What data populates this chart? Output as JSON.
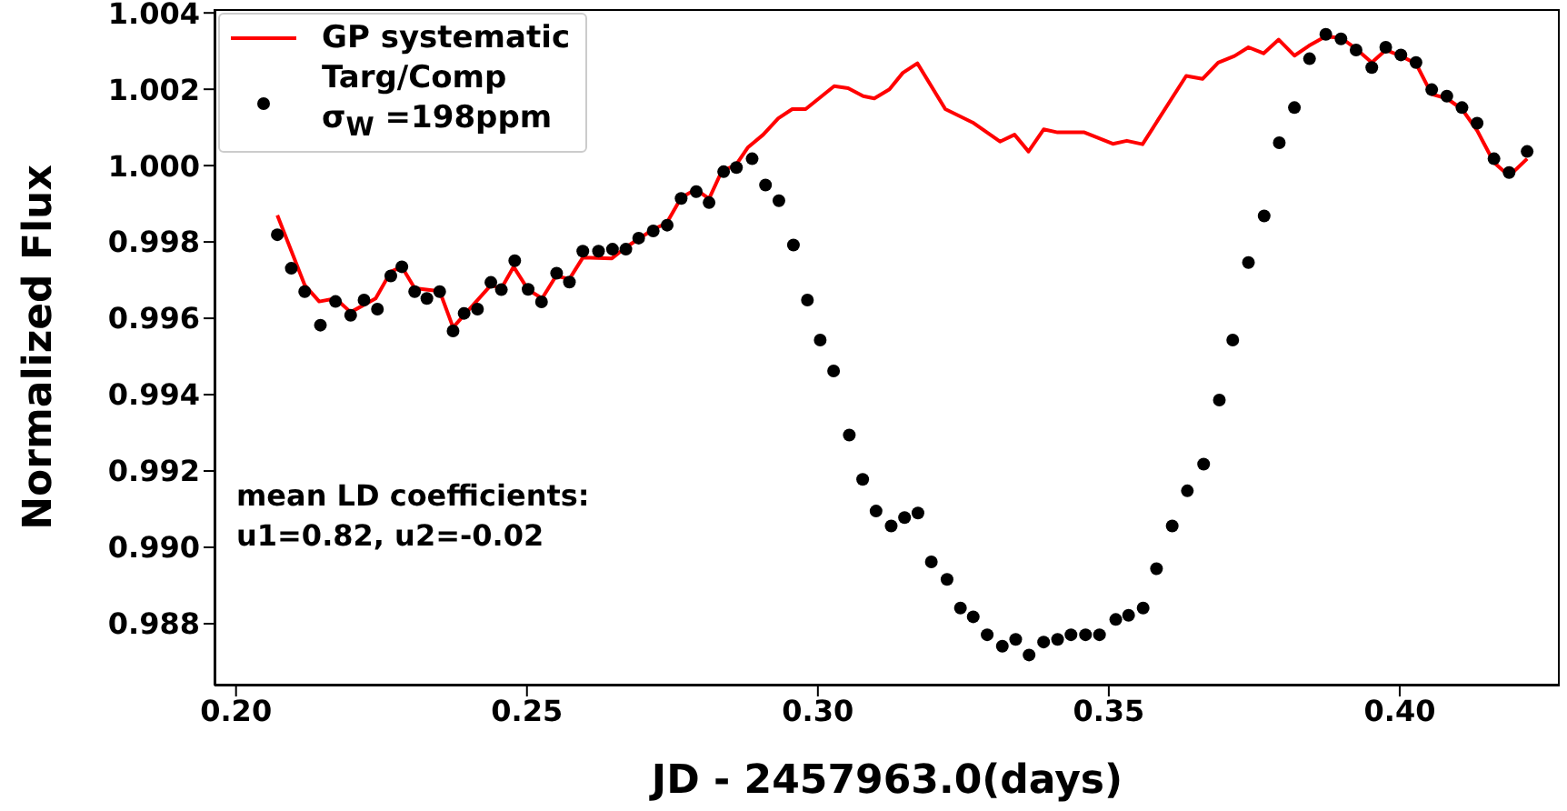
{
  "chart_data": {
    "type": "scatter",
    "xlabel": "JD - 2457963.0(days)",
    "ylabel": "Normalized Flux",
    "xlim": [
      0.1963,
      0.4275
    ],
    "ylim": [
      0.98638,
      1.0041
    ],
    "xticks": [
      {
        "value": 0.2,
        "label": "0.20"
      },
      {
        "value": 0.25,
        "label": "0.25"
      },
      {
        "value": 0.3,
        "label": "0.30"
      },
      {
        "value": 0.35,
        "label": "0.35"
      },
      {
        "value": 0.4,
        "label": "0.40"
      }
    ],
    "yticks": [
      {
        "value": 0.988,
        "label": "0.988"
      },
      {
        "value": 0.99,
        "label": "0.990"
      },
      {
        "value": 0.992,
        "label": "0.992"
      },
      {
        "value": 0.994,
        "label": "0.994"
      },
      {
        "value": 0.996,
        "label": "0.996"
      },
      {
        "value": 0.998,
        "label": "0.998"
      },
      {
        "value": 1.0,
        "label": "1.000"
      },
      {
        "value": 1.002,
        "label": "1.002"
      },
      {
        "value": 1.004,
        "label": "1.004"
      }
    ],
    "grid": false,
    "legend": "top left",
    "annotations": [
      "mean LD coefficients:\nu1=0.82, u2=-0.02"
    ],
    "series": [
      {
        "name": "GP systematic",
        "type": "line",
        "color": "#ff0000",
        "line_style": "solid",
        "marker": "none",
        "x": [
          0.2071,
          0.2118,
          0.2143,
          0.2171,
          0.2197,
          0.224,
          0.2266,
          0.2285,
          0.2307,
          0.235,
          0.2373,
          0.2438,
          0.2456,
          0.2477,
          0.2502,
          0.2526,
          0.255,
          0.2573,
          0.2596,
          0.2646,
          0.267,
          0.2717,
          0.274,
          0.2765,
          0.279,
          0.2813,
          0.2835,
          0.2859,
          0.288,
          0.2906,
          0.2932,
          0.2956,
          0.2979,
          0.3028,
          0.3052,
          0.3078,
          0.3097,
          0.3123,
          0.3146,
          0.3171,
          0.3219,
          0.3266,
          0.3313,
          0.3338,
          0.3362,
          0.3388,
          0.3412,
          0.3458,
          0.3507,
          0.3531,
          0.3558,
          0.3633,
          0.3661,
          0.3688,
          0.3716,
          0.374,
          0.3766,
          0.3792,
          0.3819,
          0.3844,
          0.3872,
          0.3899,
          0.3925,
          0.3952,
          0.3976,
          0.4002,
          0.4028,
          0.4055,
          0.4081,
          0.4107,
          0.4133,
          0.4162,
          0.4188,
          0.4219
        ],
        "values": [
          0.9987,
          0.99687,
          0.99644,
          0.99652,
          0.99616,
          0.99652,
          0.99722,
          0.99735,
          0.99679,
          0.99671,
          0.99576,
          0.99687,
          0.99678,
          0.99735,
          0.99675,
          0.99652,
          0.99711,
          0.99703,
          0.99759,
          0.99757,
          0.99786,
          0.99833,
          0.99849,
          0.99916,
          0.99938,
          0.99913,
          0.99986,
          1.00001,
          1.00048,
          1.00081,
          1.00124,
          1.00148,
          1.00148,
          1.00208,
          1.00203,
          1.00182,
          1.00176,
          1.002,
          1.00243,
          1.00268,
          1.00148,
          1.00113,
          1.00063,
          1.00081,
          1.00037,
          1.00095,
          1.00087,
          1.00087,
          1.00057,
          1.00065,
          1.00056,
          1.00235,
          1.00227,
          1.0027,
          1.00287,
          1.0031,
          1.00294,
          1.0033,
          1.00288,
          1.00314,
          1.00338,
          1.00335,
          1.00306,
          1.0027,
          1.00303,
          1.00287,
          1.00267,
          1.00187,
          1.00176,
          1.00148,
          1.00092,
          1.00008,
          0.99973,
          1.00018
        ]
      },
      {
        "name": "Targ/Comp\nσ$_{W}$ =198ppm",
        "type": "scatter",
        "color": "#000000",
        "marker": "circle",
        "x": [
          0.2071,
          0.2095,
          0.2118,
          0.2145,
          0.2171,
          0.2197,
          0.222,
          0.2243,
          0.2266,
          0.2285,
          0.2307,
          0.2328,
          0.235,
          0.2373,
          0.2392,
          0.2415,
          0.2438,
          0.2456,
          0.2479,
          0.2502,
          0.2525,
          0.2551,
          0.2573,
          0.2596,
          0.2623,
          0.2647,
          0.267,
          0.2692,
          0.2717,
          0.2741,
          0.2765,
          0.2791,
          0.2813,
          0.2838,
          0.286,
          0.2887,
          0.291,
          0.2933,
          0.2958,
          0.2982,
          0.3004,
          0.3027,
          0.3054,
          0.3077,
          0.31,
          0.3126,
          0.3149,
          0.3172,
          0.3195,
          0.3222,
          0.3245,
          0.3267,
          0.3291,
          0.3317,
          0.334,
          0.3363,
          0.3388,
          0.3412,
          0.3435,
          0.346,
          0.3484,
          0.3512,
          0.3534,
          0.3559,
          0.3582,
          0.3609,
          0.3635,
          0.3663,
          0.369,
          0.3713,
          0.374,
          0.3767,
          0.3793,
          0.3819,
          0.3845,
          0.3873,
          0.3899,
          0.3925,
          0.3952,
          0.3976,
          0.4002,
          0.4028,
          0.4055,
          0.4081,
          0.4107,
          0.4133,
          0.4162,
          0.4188,
          0.4219
        ],
        "values": [
          0.99819,
          0.99731,
          0.9967,
          0.99582,
          0.99644,
          0.99608,
          0.99648,
          0.99624,
          0.99711,
          0.99735,
          0.9967,
          0.99652,
          0.9967,
          0.99567,
          0.99613,
          0.99624,
          0.99694,
          0.99675,
          0.99751,
          0.99676,
          0.99643,
          0.99718,
          0.99695,
          0.99776,
          0.99776,
          0.99781,
          0.99781,
          0.9981,
          0.99829,
          0.99844,
          0.99914,
          0.99932,
          0.99903,
          0.99984,
          0.99995,
          1.00018,
          0.99949,
          0.99908,
          0.99792,
          0.99648,
          0.99543,
          0.99462,
          0.99294,
          0.99178,
          0.99095,
          0.99056,
          0.99078,
          0.9909,
          0.98962,
          0.98916,
          0.98841,
          0.98818,
          0.98771,
          0.98741,
          0.98759,
          0.98718,
          0.98752,
          0.98759,
          0.98771,
          0.98771,
          0.98771,
          0.98811,
          0.98822,
          0.98841,
          0.98944,
          0.99056,
          0.99148,
          0.99218,
          0.99386,
          0.99543,
          0.99746,
          0.99868,
          1.0006,
          1.00152,
          1.0028,
          1.00344,
          1.00332,
          1.00303,
          1.00257,
          1.0031,
          1.0029,
          1.0027,
          1.00199,
          1.00182,
          1.00152,
          1.00111,
          1.00018,
          0.99982,
          1.00037
        ]
      }
    ]
  }
}
